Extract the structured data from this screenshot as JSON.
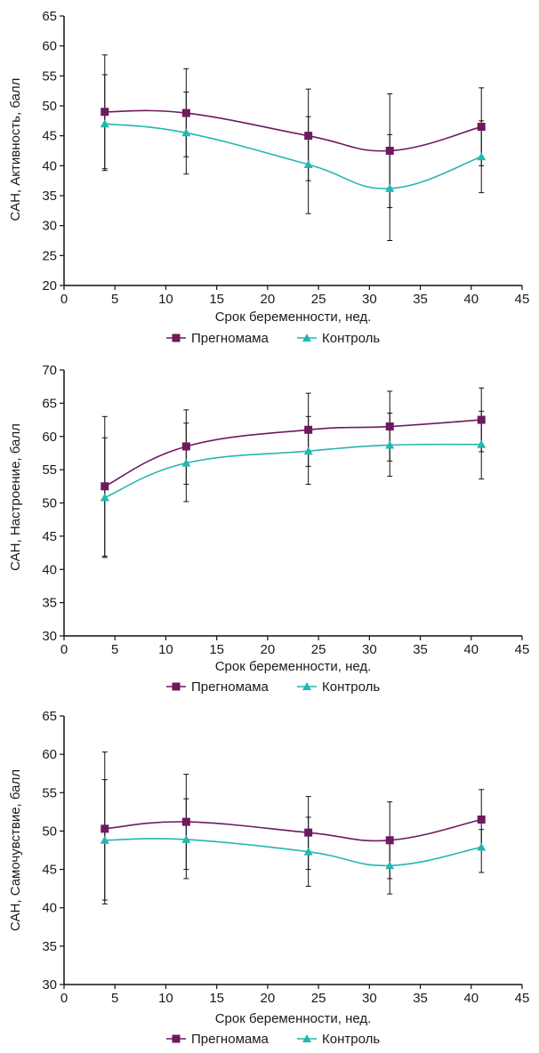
{
  "colors": {
    "series1": "#6d1a5e",
    "series2": "#24b6b0",
    "error_bar": "#111111",
    "axis": "#111111"
  },
  "chart_data": [
    {
      "type": "line",
      "xlabel": "Срок беременности, нед.",
      "ylabel": "САН, Активность, балл",
      "xlim": [
        0,
        45
      ],
      "ylim": [
        20,
        65
      ],
      "xticks": [
        0,
        5,
        10,
        15,
        20,
        25,
        30,
        35,
        40,
        45
      ],
      "yticks": [
        20,
        25,
        30,
        35,
        40,
        45,
        50,
        55,
        60,
        65
      ],
      "grid": false,
      "legend": "bottom",
      "x": [
        4,
        12,
        24,
        32,
        41
      ],
      "series": [
        {
          "name": "Прегномама",
          "marker": "square",
          "values": [
            49,
            48.8,
            45,
            42.5,
            46.5
          ],
          "err_high": [
            58.5,
            56.2,
            52.8,
            52,
            53
          ],
          "err_low": [
            39.5,
            41.5,
            37.5,
            33,
            40
          ]
        },
        {
          "name": "Контроль",
          "marker": "triangle",
          "values": [
            47,
            45.5,
            40.2,
            36.2,
            41.5
          ],
          "err_high": [
            55.2,
            52.3,
            48.2,
            45.2,
            47.5
          ],
          "err_low": [
            39.2,
            38.6,
            32,
            27.5,
            35.5
          ]
        }
      ]
    },
    {
      "type": "line",
      "xlabel": "Срок беременности, нед.",
      "ylabel": "САН, Настроение, балл",
      "xlim": [
        0,
        45
      ],
      "ylim": [
        30,
        70
      ],
      "xticks": [
        0,
        5,
        10,
        15,
        20,
        25,
        30,
        35,
        40,
        45
      ],
      "yticks": [
        30,
        35,
        40,
        45,
        50,
        55,
        60,
        65,
        70
      ],
      "grid": false,
      "legend": "bottom",
      "x": [
        4,
        12,
        24,
        32,
        41
      ],
      "series": [
        {
          "name": "Прегномама",
          "marker": "square",
          "values": [
            52.5,
            58.5,
            61,
            61.5,
            62.5
          ],
          "err_high": [
            63,
            64,
            66.5,
            66.8,
            67.3
          ],
          "err_low": [
            42,
            52.8,
            55.5,
            56.3,
            57.7
          ]
        },
        {
          "name": "Контроль",
          "marker": "triangle",
          "values": [
            50.8,
            56,
            57.8,
            58.7,
            58.8
          ],
          "err_high": [
            59.8,
            62,
            63,
            63.5,
            63.8
          ],
          "err_low": [
            41.8,
            50.2,
            52.8,
            54,
            53.6
          ]
        }
      ]
    },
    {
      "type": "line",
      "xlabel": "Срок беременности, нед.",
      "ylabel": "САН, Самочувствие, балл",
      "xlim": [
        0,
        45
      ],
      "ylim": [
        30,
        65
      ],
      "xticks": [
        0,
        5,
        10,
        15,
        20,
        25,
        30,
        35,
        40,
        45
      ],
      "yticks": [
        30,
        35,
        40,
        45,
        50,
        55,
        60,
        65
      ],
      "grid": false,
      "legend": "bottom",
      "x": [
        4,
        12,
        24,
        32,
        41
      ],
      "series": [
        {
          "name": "Прегномама",
          "marker": "square",
          "values": [
            50.3,
            51.2,
            49.8,
            48.8,
            51.5
          ],
          "err_high": [
            60.3,
            57.4,
            54.5,
            53.8,
            55.4
          ],
          "err_low": [
            41,
            45,
            45,
            43.8,
            47.5
          ]
        },
        {
          "name": "Контроль",
          "marker": "triangle",
          "values": [
            48.8,
            48.9,
            47.3,
            45.5,
            47.9
          ],
          "err_high": [
            56.7,
            54.2,
            51.8,
            48.8,
            50.2
          ],
          "err_low": [
            40.5,
            43.8,
            42.8,
            41.8,
            44.6
          ]
        }
      ]
    }
  ]
}
